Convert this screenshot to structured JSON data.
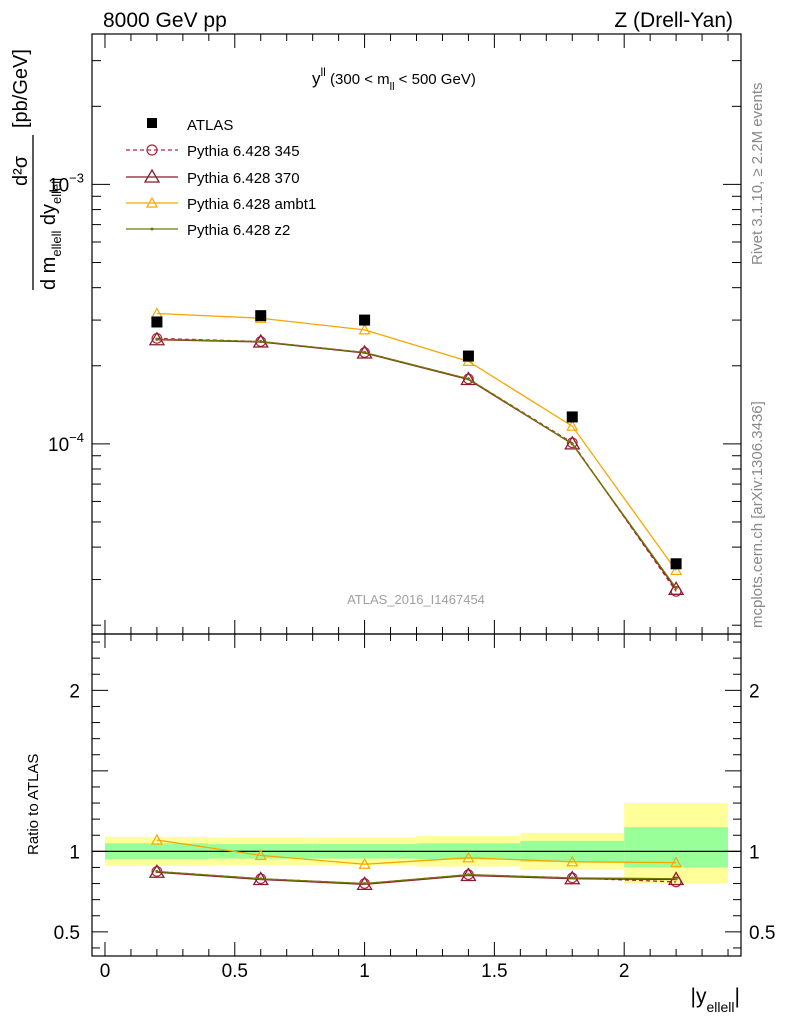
{
  "header": {
    "energy_label": "8000 GeV pp",
    "process_label": "Z (Drell-Yan)"
  },
  "side_labels": {
    "rivet": "Rivet 3.1.10, ≥ 2.2M events",
    "mcplots": "mcplots.cern.ch [arXiv:1306.3436]"
  },
  "plot_title": {
    "var": "y",
    "var_sup": "ll",
    "open": " (300 < m",
    "sub": "ll",
    "close": " < 500 GeV)"
  },
  "watermark": "ATLAS_2016_I1467454",
  "y_axis_label": {
    "unit": "[pb/GeV]",
    "num": "d²σ",
    "den_d": "d m",
    "den_m_sub": "ellell",
    "den_dy": " dy",
    "den_y_sub": "ellell"
  },
  "ratio_axis_label": "Ratio to ATLAS",
  "x_axis_label": {
    "main": "|y",
    "sub": "ellell",
    "end": "|"
  },
  "colors": {
    "atlas": "#000000",
    "p345": "#b0263f",
    "p370": "#8b1a2e",
    "ambt1": "#f5a800",
    "z2": "#6e7a00",
    "band_inner": "#99ff99",
    "band_outer": "#ffff99"
  },
  "legend": {
    "atlas": "ATLAS",
    "p345": "Pythia 6.428 345",
    "p370": "Pythia 6.428 370",
    "ambt1": "Pythia 6.428 ambt1",
    "z2": "Pythia 6.428 z2"
  },
  "chart_data": [
    {
      "type": "scatter",
      "panel": "main",
      "log_y": true,
      "xlim": [
        -0.05,
        2.45
      ],
      "ylim": [
        1.85e-05,
        0.0038
      ],
      "y_ticks": [
        {
          "value": 0.0001,
          "mant": "10",
          "exp": "−4"
        },
        {
          "value": 0.001,
          "mant": "10",
          "exp": "−3"
        }
      ],
      "x": [
        0.2,
        0.6,
        1.0,
        1.4,
        1.8,
        2.2
      ],
      "series": [
        {
          "key": "atlas",
          "name": "ATLAS",
          "values": [
            0.000295,
            0.000312,
            0.0003,
            0.000218,
            0.000127,
            3.45e-05
          ]
        },
        {
          "key": "p345",
          "name": "Pythia 6.428 345",
          "values": [
            0.000255,
            0.000248,
            0.000225,
            0.000178,
            0.000101,
            2.7e-05
          ]
        },
        {
          "key": "p370",
          "name": "Pythia 6.428 370",
          "values": [
            0.000252,
            0.000247,
            0.000224,
            0.000177,
            0.0001,
            2.75e-05
          ]
        },
        {
          "key": "ambt1",
          "name": "Pythia 6.428 ambt1",
          "values": [
            0.000318,
            0.000305,
            0.000275,
            0.000208,
            0.000117,
            3.25e-05
          ]
        },
        {
          "key": "z2",
          "name": "Pythia 6.428 z2",
          "values": [
            0.000253,
            0.000248,
            0.000225,
            0.000178,
            0.0001,
            2.78e-05
          ]
        }
      ]
    },
    {
      "type": "line",
      "panel": "ratio",
      "xlim": [
        -0.05,
        2.45
      ],
      "ylim": [
        0.35,
        2.35
      ],
      "y_ticks": [
        {
          "value": 0.5,
          "label": "0.5"
        },
        {
          "value": 1,
          "label": "1"
        },
        {
          "value": 2,
          "label": "2"
        }
      ],
      "x_ticks": [
        {
          "value": 0,
          "label": "0"
        },
        {
          "value": 0.5,
          "label": "0.5"
        },
        {
          "value": 1,
          "label": "1"
        },
        {
          "value": 1.5,
          "label": "1.5"
        },
        {
          "value": 2,
          "label": "2"
        }
      ],
      "bands": [
        {
          "x0": 0.0,
          "x1": 0.4,
          "inner": [
            0.95,
            1.05
          ],
          "outer": [
            0.91,
            1.09
          ]
        },
        {
          "x0": 0.4,
          "x1": 0.8,
          "inner": [
            0.955,
            1.045
          ],
          "outer": [
            0.915,
            1.085
          ]
        },
        {
          "x0": 0.8,
          "x1": 1.2,
          "inner": [
            0.955,
            1.045
          ],
          "outer": [
            0.915,
            1.085
          ]
        },
        {
          "x0": 1.2,
          "x1": 1.6,
          "inner": [
            0.95,
            1.05
          ],
          "outer": [
            0.905,
            1.095
          ]
        },
        {
          "x0": 1.6,
          "x1": 2.0,
          "inner": [
            0.935,
            1.065
          ],
          "outer": [
            0.885,
            1.115
          ]
        },
        {
          "x0": 2.0,
          "x1": 2.4,
          "inner": [
            0.9,
            1.15
          ],
          "outer": [
            0.8,
            1.3
          ]
        }
      ],
      "x": [
        0.2,
        0.6,
        1.0,
        1.4,
        1.8,
        2.2
      ],
      "series": [
        {
          "key": "p345",
          "name": "Pythia 6.428 345",
          "values": [
            0.875,
            0.83,
            0.8,
            0.855,
            0.835,
            0.81
          ]
        },
        {
          "key": "p370",
          "name": "Pythia 6.428 370",
          "values": [
            0.87,
            0.825,
            0.795,
            0.85,
            0.83,
            0.825
          ]
        },
        {
          "key": "ambt1",
          "name": "Pythia 6.428 ambt1",
          "values": [
            1.07,
            0.975,
            0.92,
            0.96,
            0.935,
            0.93
          ]
        },
        {
          "key": "z2",
          "name": "Pythia 6.428 z2",
          "values": [
            0.875,
            0.83,
            0.8,
            0.855,
            0.835,
            0.83
          ]
        }
      ]
    }
  ]
}
